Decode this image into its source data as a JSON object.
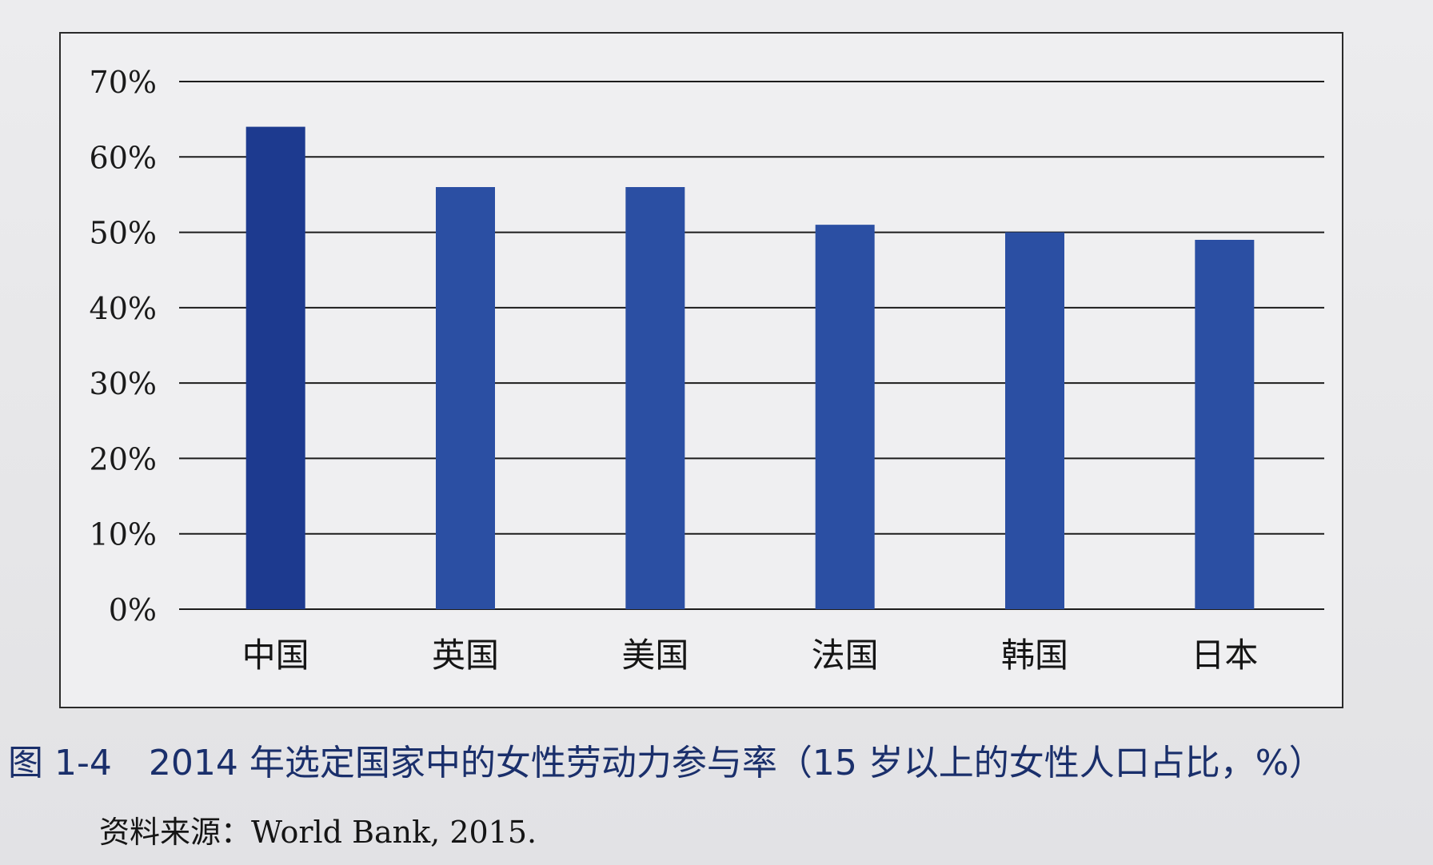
{
  "chart_data": {
    "type": "bar",
    "categories": [
      "中国",
      "英国",
      "美国",
      "法国",
      "韩国",
      "日本"
    ],
    "values": [
      64,
      56,
      56,
      51,
      50,
      49
    ],
    "y_ticks": [
      "0%",
      "10%",
      "20%",
      "30%",
      "40%",
      "50%",
      "60%",
      "70%"
    ],
    "ylim": [
      0,
      70
    ],
    "grid": true,
    "legend": "none",
    "bar_color": "#2b4fa3",
    "bar_color_dark": "#1d3a8f"
  },
  "caption": {
    "figure_number": "图 1-4",
    "text": "2014 年选定国家中的女性劳动力参与率（15 岁以上的女性人口占比，%）"
  },
  "source": "资料来源：World Bank, 2015."
}
